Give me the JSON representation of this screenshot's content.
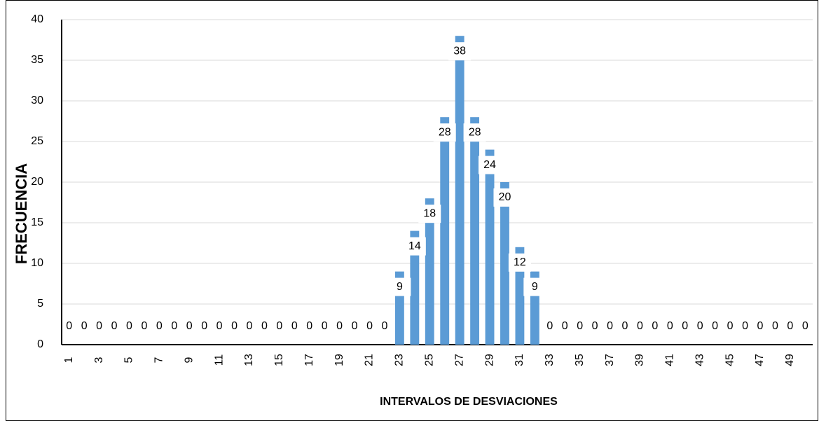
{
  "chart_data": {
    "type": "bar",
    "categories": [
      1,
      null,
      3,
      null,
      5,
      null,
      7,
      null,
      9,
      null,
      11,
      null,
      13,
      null,
      15,
      null,
      17,
      null,
      19,
      null,
      21,
      null,
      23,
      null,
      25,
      null,
      27,
      null,
      29,
      null,
      31,
      null,
      33,
      null,
      35,
      null,
      37,
      null,
      39,
      null,
      41,
      null,
      43,
      null,
      45,
      null,
      47,
      null,
      49,
      null
    ],
    "values": [
      0,
      0,
      0,
      0,
      0,
      0,
      0,
      0,
      0,
      0,
      0,
      0,
      0,
      0,
      0,
      0,
      0,
      0,
      0,
      0,
      0,
      0,
      9,
      14,
      18,
      28,
      38,
      28,
      24,
      20,
      12,
      9,
      0,
      0,
      0,
      0,
      0,
      0,
      0,
      0,
      0,
      0,
      0,
      0,
      0,
      0,
      0,
      0,
      0,
      0
    ],
    "color": "#5b9bd5",
    "ylim": [
      0,
      40
    ],
    "yticks": [
      0,
      5,
      10,
      15,
      20,
      25,
      30,
      35,
      40
    ],
    "grid": true,
    "x_label": "INTERVALOS DE DESVIACIONES",
    "y_label": "FRECUENCIA"
  }
}
